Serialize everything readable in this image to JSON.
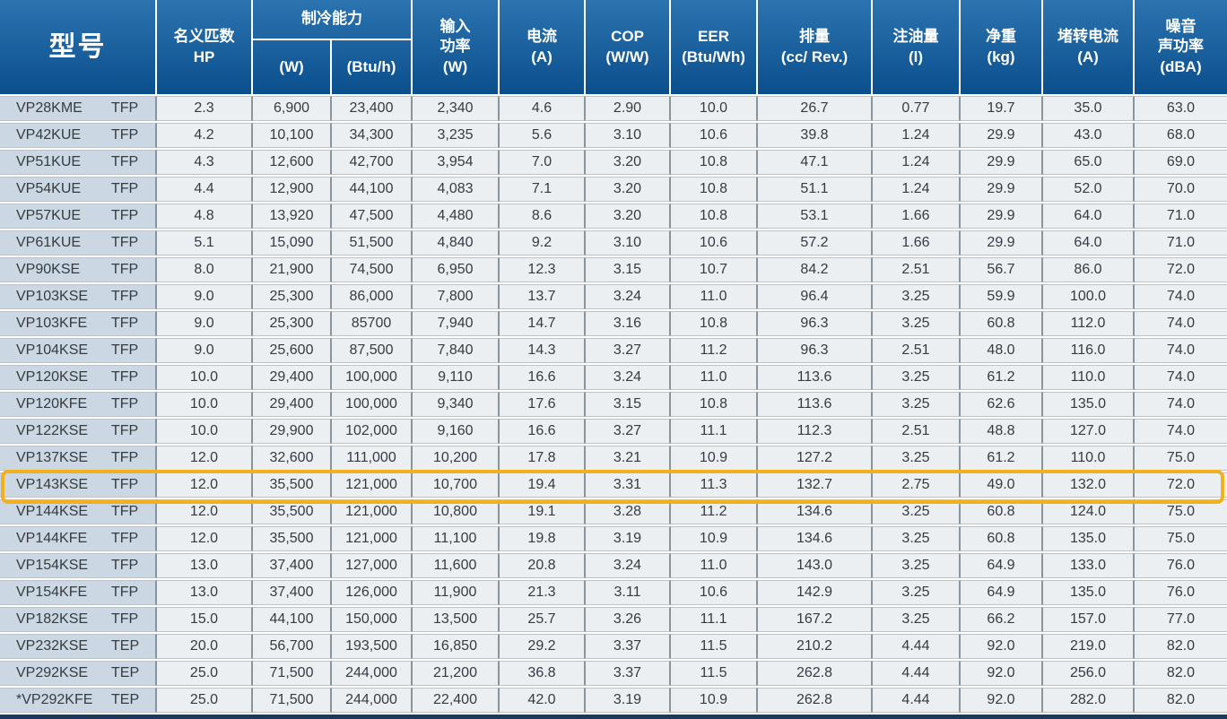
{
  "colors": {
    "header_gradient_top": "#2B74B0",
    "header_gradient_bottom": "#0B4F8D",
    "model_column_bg": "#CBD7E2",
    "data_cell_bg": "#ECEFF1",
    "highlight_ring": "#F2B01D",
    "bottom_edge": "#1A3A5C"
  },
  "table": {
    "header": {
      "model": "型号",
      "nominal_hp": "名义匹数\nHP",
      "cooling_capacity_group": "制冷能力",
      "cooling_w": "(W)",
      "cooling_btu": "(Btu/h)",
      "input_power": "输入\n功率\n(W)",
      "current": "电流\n(A)",
      "cop": "COP\n(W/W)",
      "eer": "EER\n(Btu/Wh)",
      "displacement": "排量\n(cc/ Rev.)",
      "oil_charge": "注油量\n(l)",
      "net_weight": "净重\n(kg)",
      "locked_rotor_current": "堵转电流\n(A)",
      "noise_sound_power": "噪音\n声功率\n(dBA)"
    },
    "highlighted_model": "VP143KSE",
    "rows": [
      {
        "model": "VP28KME",
        "type": "TFP",
        "hp": "2.3",
        "cooling_w": "6,900",
        "cooling_btu": "23,400",
        "input_power": "2,340",
        "current": "4.6",
        "cop": "2.90",
        "eer": "10.0",
        "displacement": "26.7",
        "oil_charge": "0.77",
        "net_weight": "19.7",
        "locked_rotor_current": "35.0",
        "noise_sound_power": "63.0"
      },
      {
        "model": "VP42KUE",
        "type": "TFP",
        "hp": "4.2",
        "cooling_w": "10,100",
        "cooling_btu": "34,300",
        "input_power": "3,235",
        "current": "5.6",
        "cop": "3.10",
        "eer": "10.6",
        "displacement": "39.8",
        "oil_charge": "1.24",
        "net_weight": "29.9",
        "locked_rotor_current": "43.0",
        "noise_sound_power": "68.0"
      },
      {
        "model": "VP51KUE",
        "type": "TFP",
        "hp": "4.3",
        "cooling_w": "12,600",
        "cooling_btu": "42,700",
        "input_power": "3,954",
        "current": "7.0",
        "cop": "3.20",
        "eer": "10.8",
        "displacement": "47.1",
        "oil_charge": "1.24",
        "net_weight": "29.9",
        "locked_rotor_current": "65.0",
        "noise_sound_power": "69.0"
      },
      {
        "model": "VP54KUE",
        "type": "TFP",
        "hp": "4.4",
        "cooling_w": "12,900",
        "cooling_btu": "44,100",
        "input_power": "4,083",
        "current": "7.1",
        "cop": "3.20",
        "eer": "10.8",
        "displacement": "51.1",
        "oil_charge": "1.24",
        "net_weight": "29.9",
        "locked_rotor_current": "52.0",
        "noise_sound_power": "70.0"
      },
      {
        "model": "VP57KUE",
        "type": "TFP",
        "hp": "4.8",
        "cooling_w": "13,920",
        "cooling_btu": "47,500",
        "input_power": "4,480",
        "current": "8.6",
        "cop": "3.20",
        "eer": "10.8",
        "displacement": "53.1",
        "oil_charge": "1.66",
        "net_weight": "29.9",
        "locked_rotor_current": "64.0",
        "noise_sound_power": "71.0"
      },
      {
        "model": "VP61KUE",
        "type": "TFP",
        "hp": "5.1",
        "cooling_w": "15,090",
        "cooling_btu": "51,500",
        "input_power": "4,840",
        "current": "9.2",
        "cop": "3.10",
        "eer": "10.6",
        "displacement": "57.2",
        "oil_charge": "1.66",
        "net_weight": "29.9",
        "locked_rotor_current": "64.0",
        "noise_sound_power": "71.0"
      },
      {
        "model": "VP90KSE",
        "type": "TFP",
        "hp": "8.0",
        "cooling_w": "21,900",
        "cooling_btu": "74,500",
        "input_power": "6,950",
        "current": "12.3",
        "cop": "3.15",
        "eer": "10.7",
        "displacement": "84.2",
        "oil_charge": "2.51",
        "net_weight": "56.7",
        "locked_rotor_current": "86.0",
        "noise_sound_power": "72.0"
      },
      {
        "model": "VP103KSE",
        "type": "TFP",
        "hp": "9.0",
        "cooling_w": "25,300",
        "cooling_btu": "86,000",
        "input_power": "7,800",
        "current": "13.7",
        "cop": "3.24",
        "eer": "11.0",
        "displacement": "96.4",
        "oil_charge": "3.25",
        "net_weight": "59.9",
        "locked_rotor_current": "100.0",
        "noise_sound_power": "74.0"
      },
      {
        "model": "VP103KFE",
        "type": "TFP",
        "hp": "9.0",
        "cooling_w": "25,300",
        "cooling_btu": "85700",
        "input_power": "7,940",
        "current": "14.7",
        "cop": "3.16",
        "eer": "10.8",
        "displacement": "96.3",
        "oil_charge": "3.25",
        "net_weight": "60.8",
        "locked_rotor_current": "112.0",
        "noise_sound_power": "74.0"
      },
      {
        "model": "VP104KSE",
        "type": "TFP",
        "hp": "9.0",
        "cooling_w": "25,600",
        "cooling_btu": "87,500",
        "input_power": "7,840",
        "current": "14.3",
        "cop": "3.27",
        "eer": "11.2",
        "displacement": "96.3",
        "oil_charge": "2.51",
        "net_weight": "48.0",
        "locked_rotor_current": "116.0",
        "noise_sound_power": "74.0"
      },
      {
        "model": "VP120KSE",
        "type": "TFP",
        "hp": "10.0",
        "cooling_w": "29,400",
        "cooling_btu": "100,000",
        "input_power": "9,110",
        "current": "16.6",
        "cop": "3.24",
        "eer": "11.0",
        "displacement": "113.6",
        "oil_charge": "3.25",
        "net_weight": "61.2",
        "locked_rotor_current": "110.0",
        "noise_sound_power": "74.0"
      },
      {
        "model": "VP120KFE",
        "type": "TFP",
        "hp": "10.0",
        "cooling_w": "29,400",
        "cooling_btu": "100,000",
        "input_power": "9,340",
        "current": "17.6",
        "cop": "3.15",
        "eer": "10.8",
        "displacement": "113.6",
        "oil_charge": "3.25",
        "net_weight": "62.6",
        "locked_rotor_current": "135.0",
        "noise_sound_power": "74.0"
      },
      {
        "model": "VP122KSE",
        "type": "TFP",
        "hp": "10.0",
        "cooling_w": "29,900",
        "cooling_btu": "102,000",
        "input_power": "9,160",
        "current": "16.6",
        "cop": "3.27",
        "eer": "11.1",
        "displacement": "112.3",
        "oil_charge": "2.51",
        "net_weight": "48.8",
        "locked_rotor_current": "127.0",
        "noise_sound_power": "74.0"
      },
      {
        "model": "VP137KSE",
        "type": "TFP",
        "hp": "12.0",
        "cooling_w": "32,600",
        "cooling_btu": "111,000",
        "input_power": "10,200",
        "current": "17.8",
        "cop": "3.21",
        "eer": "10.9",
        "displacement": "127.2",
        "oil_charge": "3.25",
        "net_weight": "61.2",
        "locked_rotor_current": "110.0",
        "noise_sound_power": "75.0"
      },
      {
        "model": "VP143KSE",
        "type": "TFP",
        "hp": "12.0",
        "cooling_w": "35,500",
        "cooling_btu": "121,000",
        "input_power": "10,700",
        "current": "19.4",
        "cop": "3.31",
        "eer": "11.3",
        "displacement": "132.7",
        "oil_charge": "2.75",
        "net_weight": "49.0",
        "locked_rotor_current": "132.0",
        "noise_sound_power": "72.0"
      },
      {
        "model": "VP144KSE",
        "type": "TFP",
        "hp": "12.0",
        "cooling_w": "35,500",
        "cooling_btu": "121,000",
        "input_power": "10,800",
        "current": "19.1",
        "cop": "3.28",
        "eer": "11.2",
        "displacement": "134.6",
        "oil_charge": "3.25",
        "net_weight": "60.8",
        "locked_rotor_current": "124.0",
        "noise_sound_power": "75.0"
      },
      {
        "model": "VP144KFE",
        "type": "TFP",
        "hp": "12.0",
        "cooling_w": "35,500",
        "cooling_btu": "121,000",
        "input_power": "11,100",
        "current": "19.8",
        "cop": "3.19",
        "eer": "10.9",
        "displacement": "134.6",
        "oil_charge": "3.25",
        "net_weight": "60.8",
        "locked_rotor_current": "135.0",
        "noise_sound_power": "75.0"
      },
      {
        "model": "VP154KSE",
        "type": "TFP",
        "hp": "13.0",
        "cooling_w": "37,400",
        "cooling_btu": "127,000",
        "input_power": "11,600",
        "current": "20.8",
        "cop": "3.24",
        "eer": "11.0",
        "displacement": "143.0",
        "oil_charge": "3.25",
        "net_weight": "64.9",
        "locked_rotor_current": "133.0",
        "noise_sound_power": "76.0"
      },
      {
        "model": "VP154KFE",
        "type": "TFP",
        "hp": "13.0",
        "cooling_w": "37,400",
        "cooling_btu": "126,000",
        "input_power": "11,900",
        "current": "21.3",
        "cop": "3.11",
        "eer": "10.6",
        "displacement": "142.9",
        "oil_charge": "3.25",
        "net_weight": "64.9",
        "locked_rotor_current": "135.0",
        "noise_sound_power": "76.0"
      },
      {
        "model": "VP182KSE",
        "type": "TFP",
        "hp": "15.0",
        "cooling_w": "44,100",
        "cooling_btu": "150,000",
        "input_power": "13,500",
        "current": "25.7",
        "cop": "3.26",
        "eer": "11.1",
        "displacement": "167.2",
        "oil_charge": "3.25",
        "net_weight": "66.2",
        "locked_rotor_current": "157.0",
        "noise_sound_power": "77.0"
      },
      {
        "model": "VP232KSE",
        "type": "TEP",
        "hp": "20.0",
        "cooling_w": "56,700",
        "cooling_btu": "193,500",
        "input_power": "16,850",
        "current": "29.2",
        "cop": "3.37",
        "eer": "11.5",
        "displacement": "210.2",
        "oil_charge": "4.44",
        "net_weight": "92.0",
        "locked_rotor_current": "219.0",
        "noise_sound_power": "82.0"
      },
      {
        "model": "VP292KSE",
        "type": "TEP",
        "hp": "25.0",
        "cooling_w": "71,500",
        "cooling_btu": "244,000",
        "input_power": "21,200",
        "current": "36.8",
        "cop": "3.37",
        "eer": "11.5",
        "displacement": "262.8",
        "oil_charge": "4.44",
        "net_weight": "92.0",
        "locked_rotor_current": "256.0",
        "noise_sound_power": "82.0"
      },
      {
        "model": "*VP292KFE",
        "type": "TEP",
        "hp": "25.0",
        "cooling_w": "71,500",
        "cooling_btu": "244,000",
        "input_power": "22,400",
        "current": "42.0",
        "cop": "3.19",
        "eer": "10.9",
        "displacement": "262.8",
        "oil_charge": "4.44",
        "net_weight": "92.0",
        "locked_rotor_current": "282.0",
        "noise_sound_power": "82.0"
      }
    ]
  }
}
